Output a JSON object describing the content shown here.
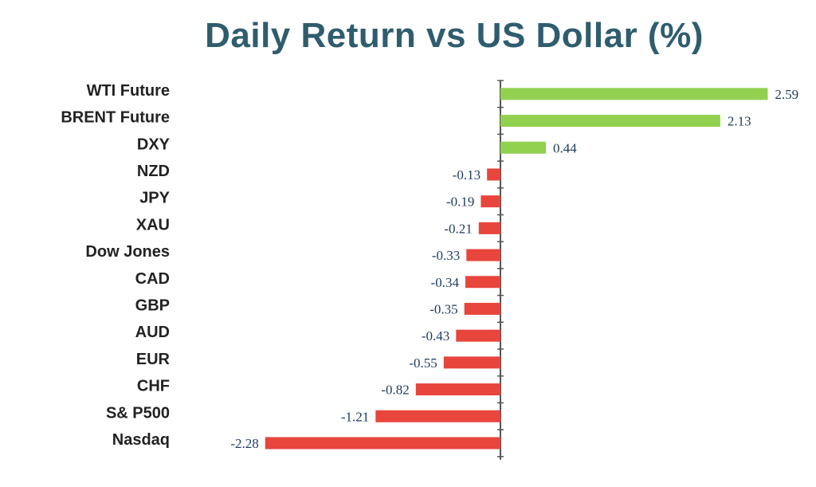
{
  "chart_data": {
    "type": "bar",
    "orientation": "horizontal",
    "title": "Daily Return vs US Dollar (%)",
    "xlabel": "",
    "ylabel": "",
    "grid": false,
    "categories": [
      "WTI Future",
      "BRENT Future",
      "DXY",
      "NZD",
      "JPY",
      "XAU",
      "Dow Jones",
      "CAD",
      "GBP",
      "AUD",
      "EUR",
      "CHF",
      "S& P500",
      "Nasdaq"
    ],
    "values": [
      2.59,
      2.13,
      0.44,
      -0.13,
      -0.19,
      -0.21,
      -0.33,
      -0.34,
      -0.35,
      -0.43,
      -0.55,
      -0.82,
      -1.21,
      -2.28
    ],
    "value_labels": [
      "2.59",
      "2.13",
      "0.44",
      "-0.13",
      "-0.19",
      "-0.21",
      "-0.33",
      "-0.34",
      "-0.35",
      "-0.43",
      "-0.55",
      "-0.82",
      "-1.21",
      "-2.28"
    ],
    "positive_color": "#92d050",
    "negative_color": "#e8453c",
    "axis_color": "#555555"
  }
}
